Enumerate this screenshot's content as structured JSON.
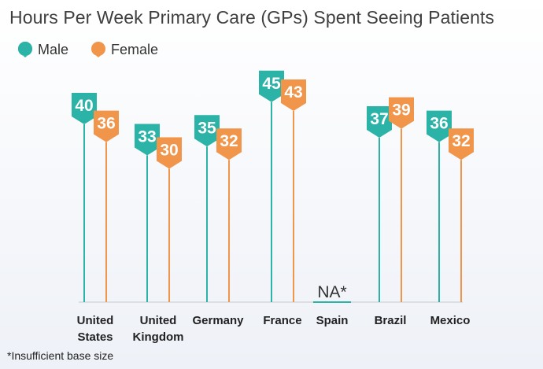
{
  "title": "Hours Per Week Primary Care (GPs) Spent Seeing Patients",
  "legend": [
    {
      "label": "Male",
      "color": "#2ab3a6",
      "icon": "teal-pin-icon"
    },
    {
      "label": "Female",
      "color": "#f0954a",
      "icon": "orange-pin-icon"
    }
  ],
  "footnote": "*Insufficient base size",
  "chart_data": {
    "type": "lollipop",
    "title": "Hours Per Week Primary Care (GPs) Spent Seeing Patients",
    "categories": [
      [
        "United",
        "States"
      ],
      [
        "United",
        "Kingdom"
      ],
      [
        "Germany"
      ],
      [
        "France"
      ],
      [
        "Spain"
      ],
      [
        "Brazil"
      ],
      [
        "Mexico"
      ]
    ],
    "series": [
      {
        "name": "Male",
        "color": "#2ab3a6",
        "values": [
          40,
          33,
          35,
          45,
          null,
          37,
          36
        ]
      },
      {
        "name": "Female",
        "color": "#f0954a",
        "values": [
          36,
          30,
          32,
          43,
          null,
          39,
          32
        ]
      }
    ],
    "missing_label": "NA*",
    "grid": false,
    "legend_position": "top-left"
  }
}
